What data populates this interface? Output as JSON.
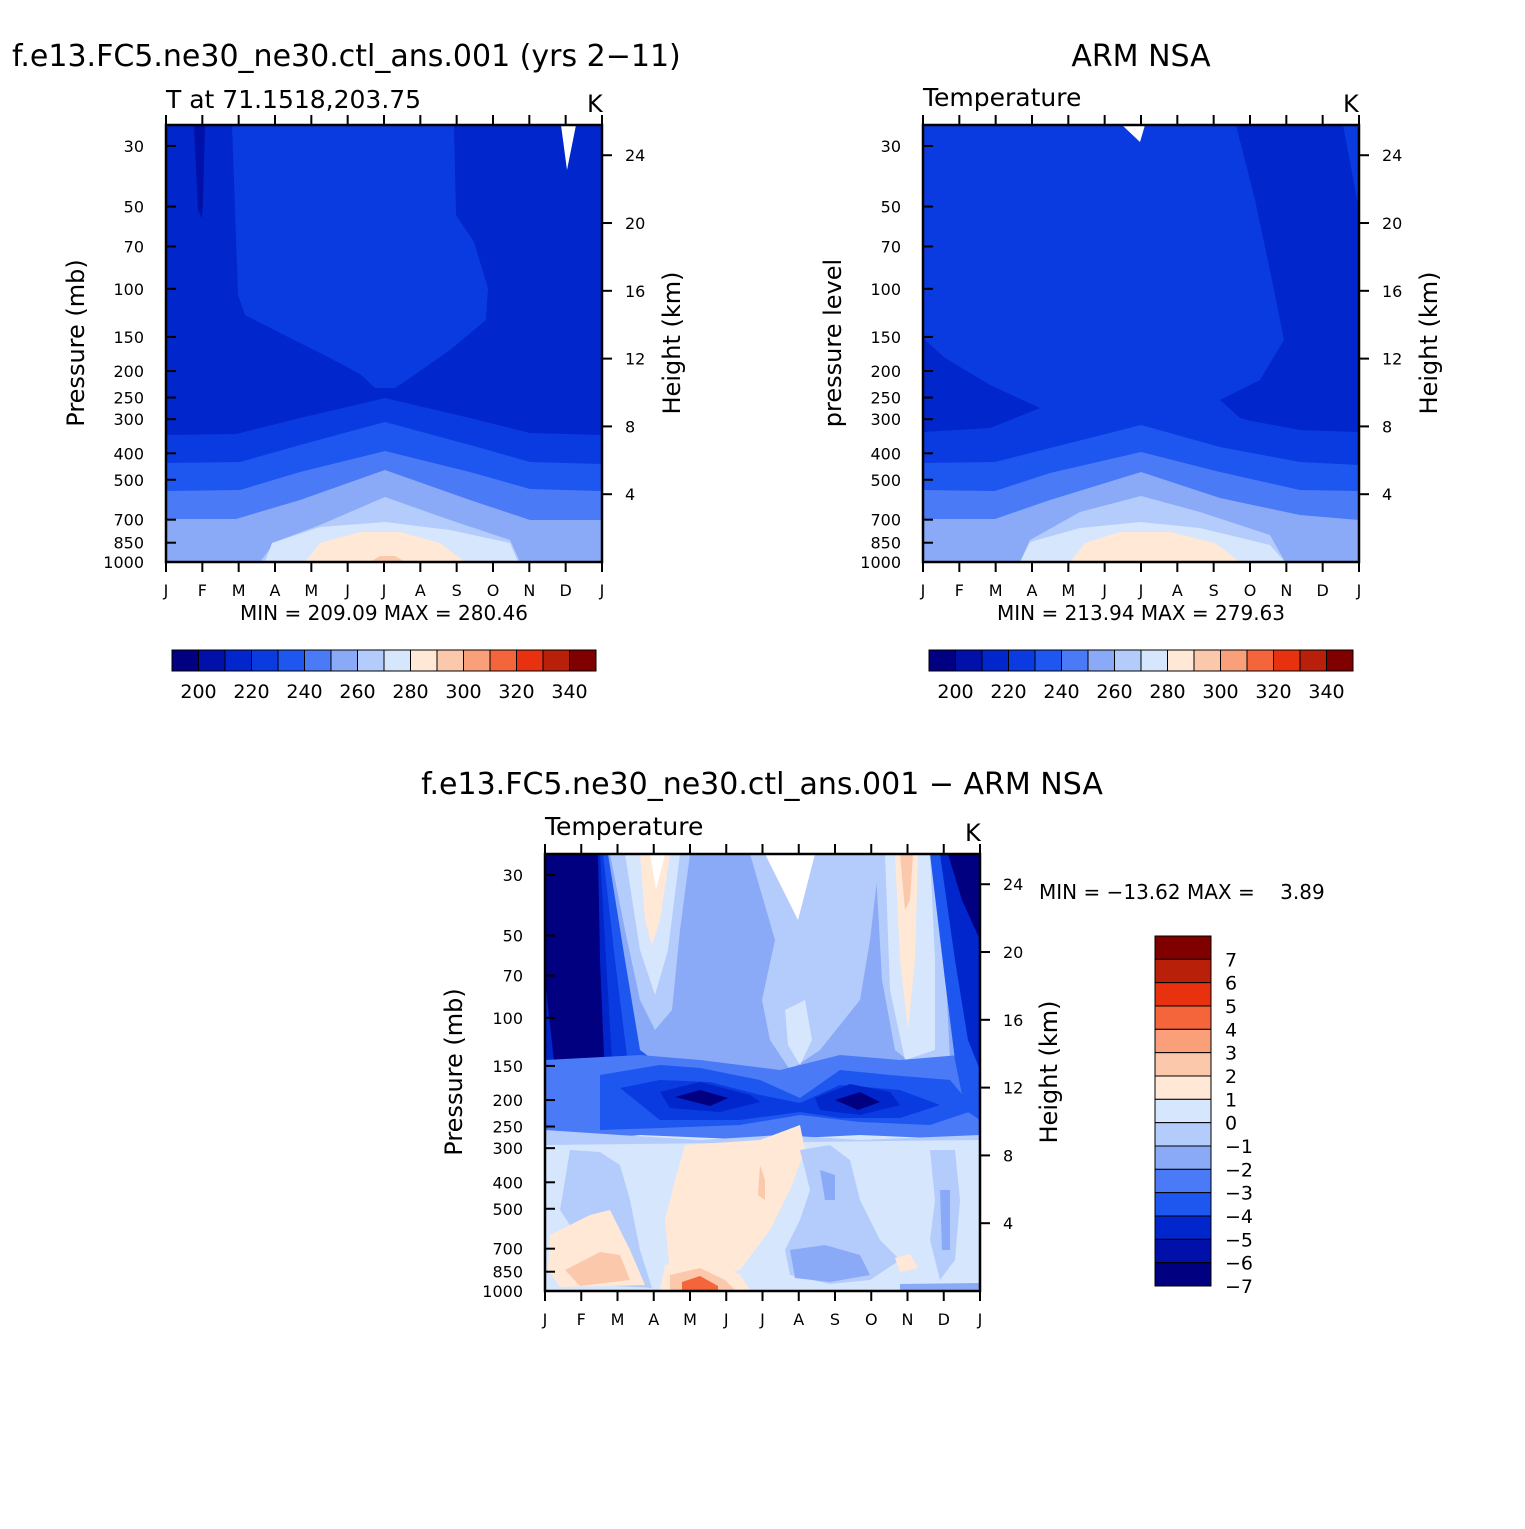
{
  "months": [
    "J",
    "F",
    "M",
    "A",
    "M",
    "J",
    "J",
    "A",
    "S",
    "O",
    "N",
    "D",
    "J"
  ],
  "pressure_ticks": [
    "30",
    "50",
    "70",
    "100",
    "150",
    "200",
    "250",
    "300",
    "400",
    "500",
    "700",
    "850",
    "1000"
  ],
  "height_ticks": [
    "24",
    "20",
    "16",
    "12",
    "8",
    "4"
  ],
  "unit": "K",
  "abs_colors": [
    "#000080",
    "#0010a8",
    "#0026cc",
    "#0a3be0",
    "#1e56f0",
    "#4a7af5",
    "#8aaaf8",
    "#b4ccfb",
    "#d6e6fd",
    "#ffe8d6",
    "#fcc8ac",
    "#f9a07a",
    "#f4653c",
    "#e8320f",
    "#b8200a",
    "#800000"
  ],
  "diff_colors": [
    "#000080",
    "#0010a8",
    "#0026cc",
    "#1e56f0",
    "#4a7af5",
    "#8aaaf8",
    "#b4ccfb",
    "#d6e6fd",
    "#ffe8d6",
    "#fcc8ac",
    "#f9a07a",
    "#f4653c",
    "#e8320f",
    "#b8200a",
    "#800000"
  ],
  "abs_colorbar_labels": [
    "200",
    "220",
    "240",
    "260",
    "280",
    "300",
    "320",
    "340"
  ],
  "diff_colorbar_labels": [
    "7",
    "6",
    "5",
    "4",
    "3",
    "2",
    "1",
    "0",
    "−1",
    "−2",
    "−3",
    "−4",
    "−5",
    "−6",
    "−7"
  ],
  "chart_data": [
    {
      "type": "heatmap",
      "panel_title": "f.e13.FC5.ne30_ne30.ctl_ans.001 (yrs 2−11)",
      "title": "T at 71.1518,203.75",
      "units": "K",
      "ylabel": "Pressure (mb)",
      "y2label": "Height (km)",
      "stats": "MIN = 209.09 MAX = 280.46",
      "min": 209.09,
      "max": 280.46
    },
    {
      "type": "heatmap",
      "panel_title": "ARM NSA",
      "title": "Temperature",
      "units": "K",
      "ylabel": "pressure level",
      "y2label": "Height (km)",
      "stats": "MIN = 213.94 MAX = 279.63",
      "min": 213.94,
      "max": 279.63
    },
    {
      "type": "heatmap",
      "panel_title": "f.e13.FC5.ne30_ne30.ctl_ans.001 − ARM NSA",
      "title": "Temperature",
      "units": "K",
      "ylabel": "Pressure (mb)",
      "y2label": "Height (km)",
      "stats": "MIN = −13.62 MAX =    3.89",
      "min": -13.62,
      "max": 3.89
    }
  ]
}
